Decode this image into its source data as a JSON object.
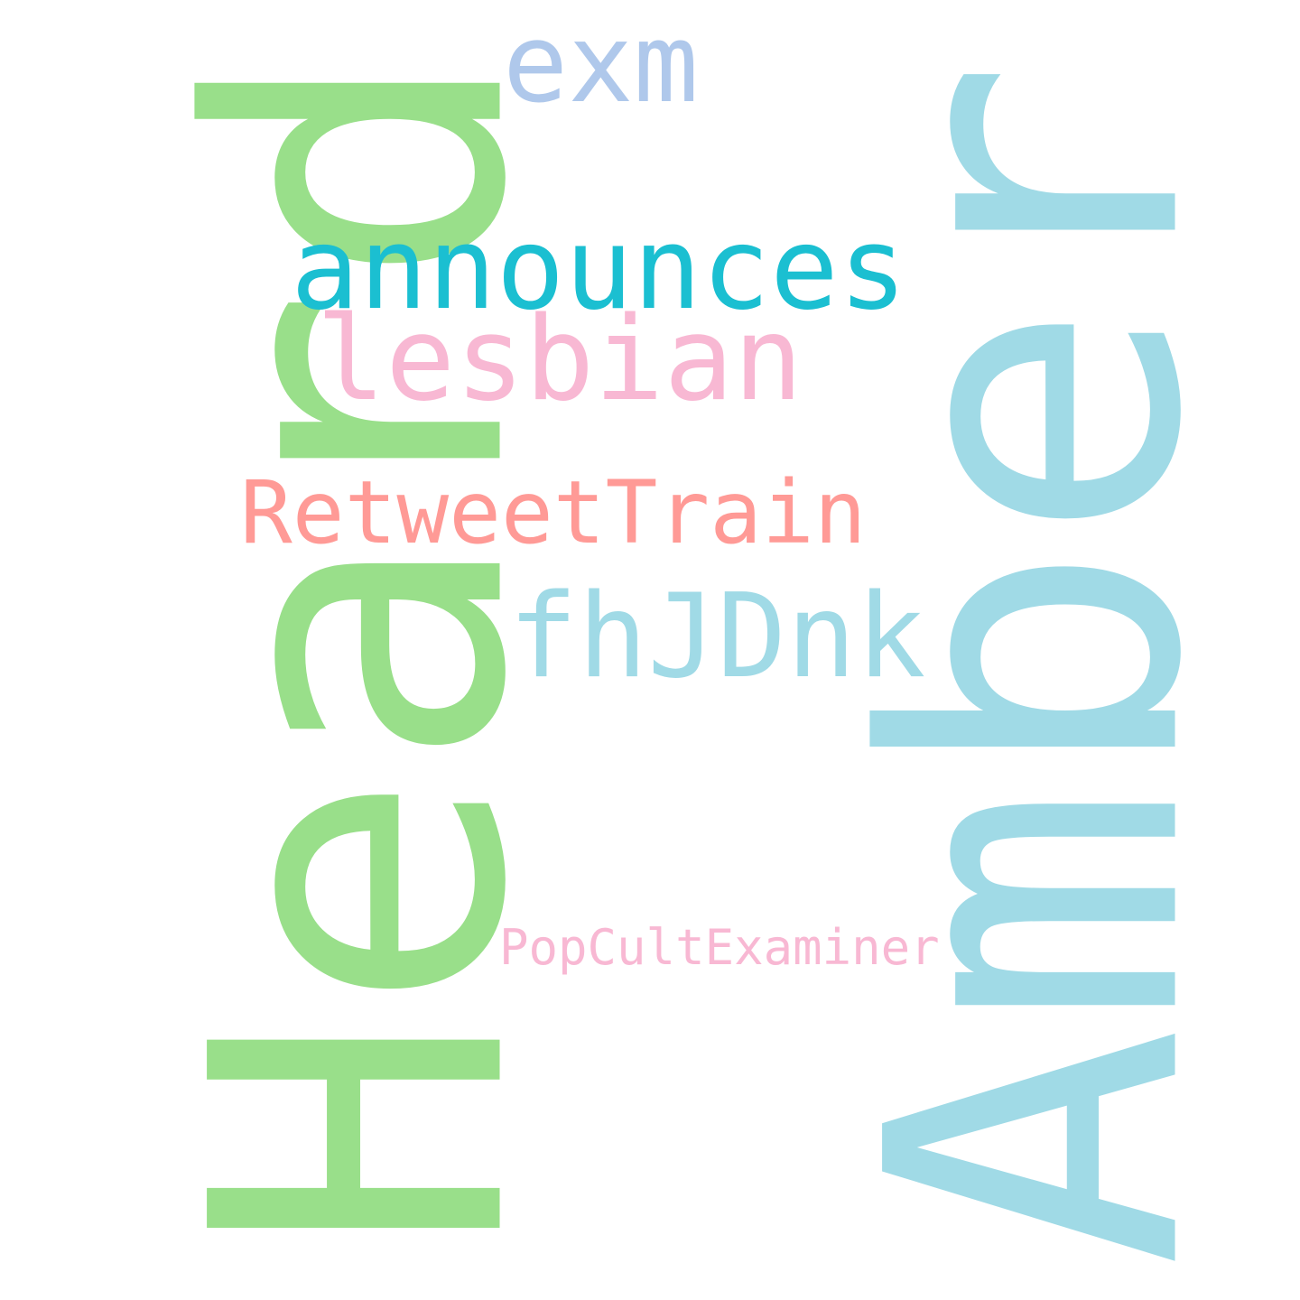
{
  "words": [
    {
      "text": "Amber",
      "color": "#a0dae6",
      "orientation": "vertical"
    },
    {
      "text": "Heard",
      "color": "#99df8a",
      "orientation": "vertical"
    },
    {
      "text": "announces",
      "color": "#1bbfd1",
      "orientation": "horizontal"
    },
    {
      "text": "lesbian",
      "color": "#f8b8d3",
      "orientation": "horizontal"
    },
    {
      "text": "RetweetTrain",
      "color": "#ff9a96",
      "orientation": "horizontal"
    },
    {
      "text": "fhJDnk",
      "color": "#a0dae6",
      "orientation": "horizontal"
    },
    {
      "text": "exm",
      "color": "#afc8eb",
      "orientation": "horizontal"
    },
    {
      "text": "PopCultExaminer",
      "color": "#f8b8d3",
      "orientation": "horizontal"
    }
  ]
}
